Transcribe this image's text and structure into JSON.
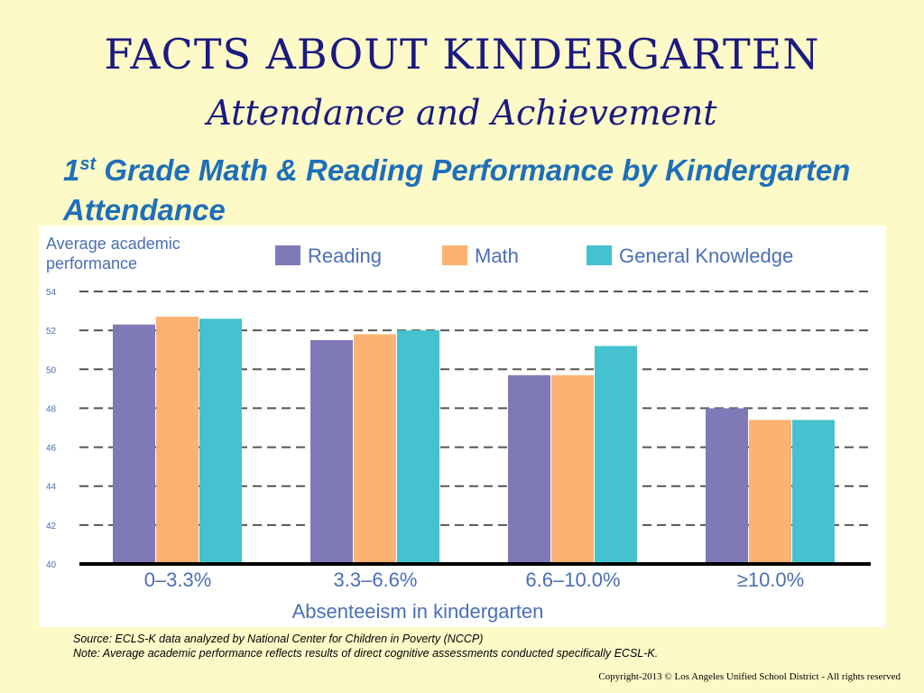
{
  "slide": {
    "title": "FACTS ABOUT KINDERGARTEN",
    "subtitle": "Attendance and Achievement",
    "heading_prefix": "1",
    "heading_sup": "st",
    "heading_rest": " Grade Math & Reading Performance by Kindergarten Attendance"
  },
  "notes": {
    "source": "Source: ECLS-K  data analyzed by National Center for Children in Poverty (NCCP)",
    "note": "Note: Average academic performance reflects results of direct cognitive assessments conducted specifically  ECSL-K."
  },
  "copyright": "Copyright-2013 © Los Angeles Unified School District - All rights reserved",
  "chart_data": {
    "type": "bar",
    "ylabel_lines": [
      "Average academic",
      "performance"
    ],
    "xlabel": "Absenteeism in kindergarten",
    "categories": [
      "0–3.3%",
      "3.3–6.6%",
      "6.6–10.0%",
      "≥10.0%"
    ],
    "ylim": [
      40,
      54
    ],
    "yticks": [
      40,
      42,
      44,
      46,
      48,
      50,
      52,
      54
    ],
    "grid": true,
    "legend_position": "top",
    "series": [
      {
        "name": "Reading",
        "color": "#8079b8",
        "values": [
          52.3,
          51.5,
          49.7,
          48.0
        ]
      },
      {
        "name": "Math",
        "color": "#fbb272",
        "values": [
          52.7,
          51.8,
          49.7,
          47.4
        ]
      },
      {
        "name": "General Knowledge",
        "color": "#45c2cf",
        "values": [
          52.6,
          52.0,
          51.2,
          47.4
        ]
      }
    ]
  }
}
